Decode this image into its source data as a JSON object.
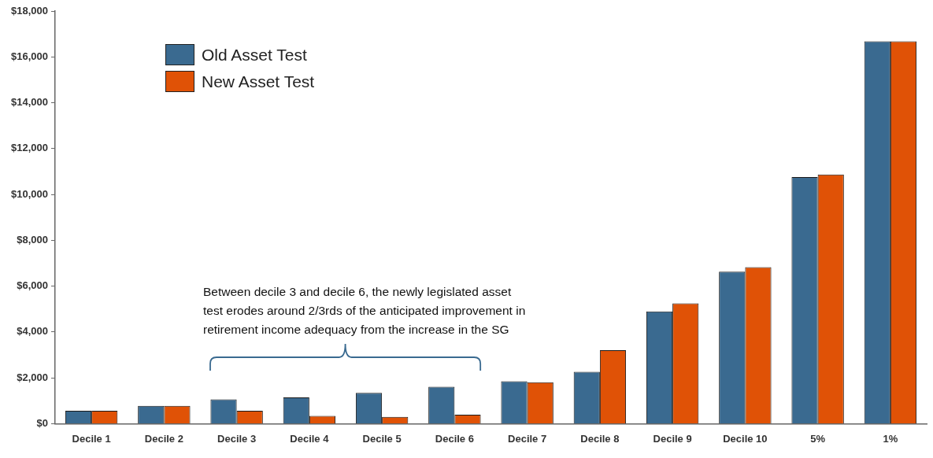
{
  "chart_data": {
    "type": "bar",
    "categories": [
      "Decile 1",
      "Decile 2",
      "Decile 3",
      "Decile 4",
      "Decile 5",
      "Decile 6",
      "Decile 7",
      "Decile 8",
      "Decile 9",
      "Decile 10",
      "5%",
      "1%"
    ],
    "series": [
      {
        "name": "Old Asset Test",
        "color": "#3a6a90",
        "values": [
          560,
          780,
          1060,
          1150,
          1340,
          1610,
          1850,
          2260,
          4900,
          6630,
          10760,
          16680
        ]
      },
      {
        "name": "New Asset Test",
        "color": "#e05206",
        "values": [
          560,
          780,
          560,
          340,
          300,
          390,
          1810,
          3210,
          5250,
          6830,
          10870,
          16680
        ]
      }
    ],
    "ylim": [
      0,
      18000
    ],
    "yticks": [
      {
        "value": 0,
        "label": "$0"
      },
      {
        "value": 2000,
        "label": "$2,000"
      },
      {
        "value": 4000,
        "label": "$4,000"
      },
      {
        "value": 6000,
        "label": "$6,000"
      },
      {
        "value": 8000,
        "label": "$8,000"
      },
      {
        "value": 10000,
        "label": "$10,000"
      },
      {
        "value": 12000,
        "label": "$12,000"
      },
      {
        "value": 14000,
        "label": "$14,000"
      },
      {
        "value": 16000,
        "label": "$16,000"
      },
      {
        "value": 18000,
        "label": "$18,000"
      }
    ],
    "grid": false,
    "legend": "top left",
    "annotations": [
      "Between decile 3 and decile 6, the newly legislated asset test erodes around 2/3rds of the anticipated improvement in retirement income adequacy from the increase in the SG"
    ]
  }
}
